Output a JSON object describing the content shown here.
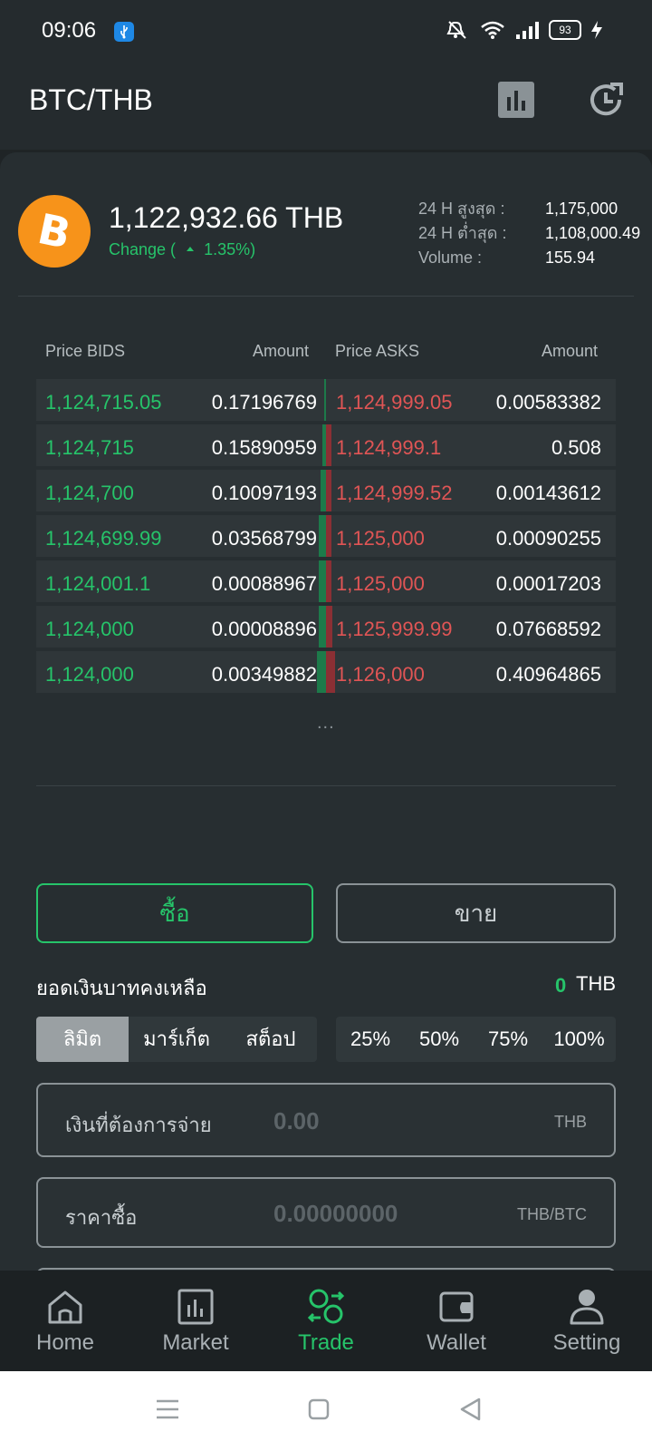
{
  "status_bar": {
    "time": "09:06",
    "battery": "93"
  },
  "header": {
    "title": "BTC/THB"
  },
  "ticker": {
    "price": "1,122,932.66 THB",
    "change_prefix": "Change (",
    "change_value": "1.35%)",
    "stats": [
      {
        "label": "24 H สูงสุด :",
        "value": "1,175,000"
      },
      {
        "label": "24 H ต่ำสุด :",
        "value": "1,108,000.49"
      },
      {
        "label": "Volume :",
        "value": "155.94"
      }
    ]
  },
  "orderbook": {
    "headers": {
      "bid_price": "Price BIDS",
      "bid_amount": "Amount",
      "ask_price": "Price ASKS",
      "ask_amount": "Amount"
    },
    "rows": [
      {
        "bid_price": "1,124,715.05",
        "bid_amount": "0.17196769",
        "ask_price": "1,124,999.05",
        "ask_amount": "0.00583382"
      },
      {
        "bid_price": "1,124,715",
        "bid_amount": "0.15890959",
        "ask_price": "1,124,999.1",
        "ask_amount": "0.508"
      },
      {
        "bid_price": "1,124,700",
        "bid_amount": "0.10097193",
        "ask_price": "1,124,999.52",
        "ask_amount": "0.00143612"
      },
      {
        "bid_price": "1,124,699.99",
        "bid_amount": "0.03568799",
        "ask_price": "1,125,000",
        "ask_amount": "0.00090255"
      },
      {
        "bid_price": "1,124,001.1",
        "bid_amount": "0.00088967",
        "ask_price": "1,125,000",
        "ask_amount": "0.00017203"
      },
      {
        "bid_price": "1,124,000",
        "bid_amount": "0.00008896",
        "ask_price": "1,125,999.99",
        "ask_amount": "0.07668592"
      },
      {
        "bid_price": "1,124,000",
        "bid_amount": "0.00349882",
        "ask_price": "1,126,000",
        "ask_amount": "0.40964865"
      }
    ],
    "more": "..."
  },
  "trade": {
    "buy_label": "ซื้อ",
    "sell_label": "ขาย",
    "balance_label": "ยอดเงินบาทคงเหลือ",
    "balance_value": "0",
    "balance_currency": "THB",
    "order_types": [
      "ลิมิต",
      "มาร์เก็ต",
      "สต็อป"
    ],
    "percentages": [
      "25%",
      "50%",
      "75%",
      "100%"
    ],
    "pay_input": {
      "label": "เงินที่ต้องการจ่าย",
      "placeholder": "0.00",
      "unit": "THB"
    },
    "price_input": {
      "label": "ราคาซื้อ",
      "placeholder": "0.00000000",
      "unit": "THB/BTC"
    }
  },
  "bottom_nav": [
    {
      "label": "Home",
      "icon": "home-icon"
    },
    {
      "label": "Market",
      "icon": "chart-icon"
    },
    {
      "label": "Trade",
      "icon": "trade-icon"
    },
    {
      "label": "Wallet",
      "icon": "wallet-icon"
    },
    {
      "label": "Setting",
      "icon": "user-icon"
    }
  ],
  "colors": {
    "accent": "#26c46a",
    "ask": "#e05555",
    "background": "#272e31"
  }
}
